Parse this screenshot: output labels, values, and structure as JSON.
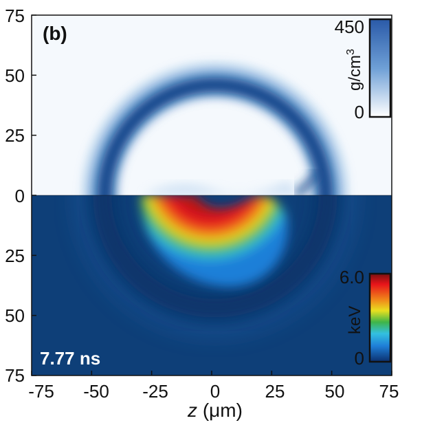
{
  "panel_label": "(b)",
  "time_label": "7.77 ns",
  "x_axis": {
    "label_var": "z",
    "label_unit": " (μm)",
    "ticks": [
      "-75",
      "-50",
      "-25",
      "0",
      "25",
      "50",
      "75"
    ]
  },
  "y_axis": {
    "ticks": [
      "75",
      "50",
      "25",
      "0",
      "25",
      "50",
      "75"
    ]
  },
  "density_colorbar": {
    "max": "450",
    "min": "0",
    "unit": "g/cm",
    "unit_sup": "3",
    "color_top": "#2a5aa8",
    "color_bottom": "#ffffff"
  },
  "temperature_colorbar": {
    "max": "6.0",
    "min": "0",
    "unit": "keV",
    "colors": [
      "#0b2f6e",
      "#1f7fd8",
      "#33c0e0",
      "#3fb548",
      "#e8e020",
      "#f08a1a",
      "#e8141a",
      "#7a1010"
    ]
  },
  "colors": {
    "upper_background": "#f5f9fd",
    "lower_background": "#0e3f78",
    "shell_dark": "#0f3f86",
    "shell_mid": "#2f72be",
    "shell_light": "#8ab8e2"
  },
  "chart_data": {
    "type": "heatmap",
    "title": "",
    "xlabel": "z (μm)",
    "ylabel": "",
    "xlim": [
      -75,
      75
    ],
    "ylim": [
      -75,
      75
    ],
    "panels": [
      {
        "region": "upper half",
        "quantity": "density",
        "unit": "g/cm3",
        "range": [
          0,
          450
        ]
      },
      {
        "region": "lower half",
        "quantity": "temperature",
        "unit": "keV",
        "range": [
          0,
          6.0
        ]
      }
    ],
    "time": "7.77 ns"
  }
}
